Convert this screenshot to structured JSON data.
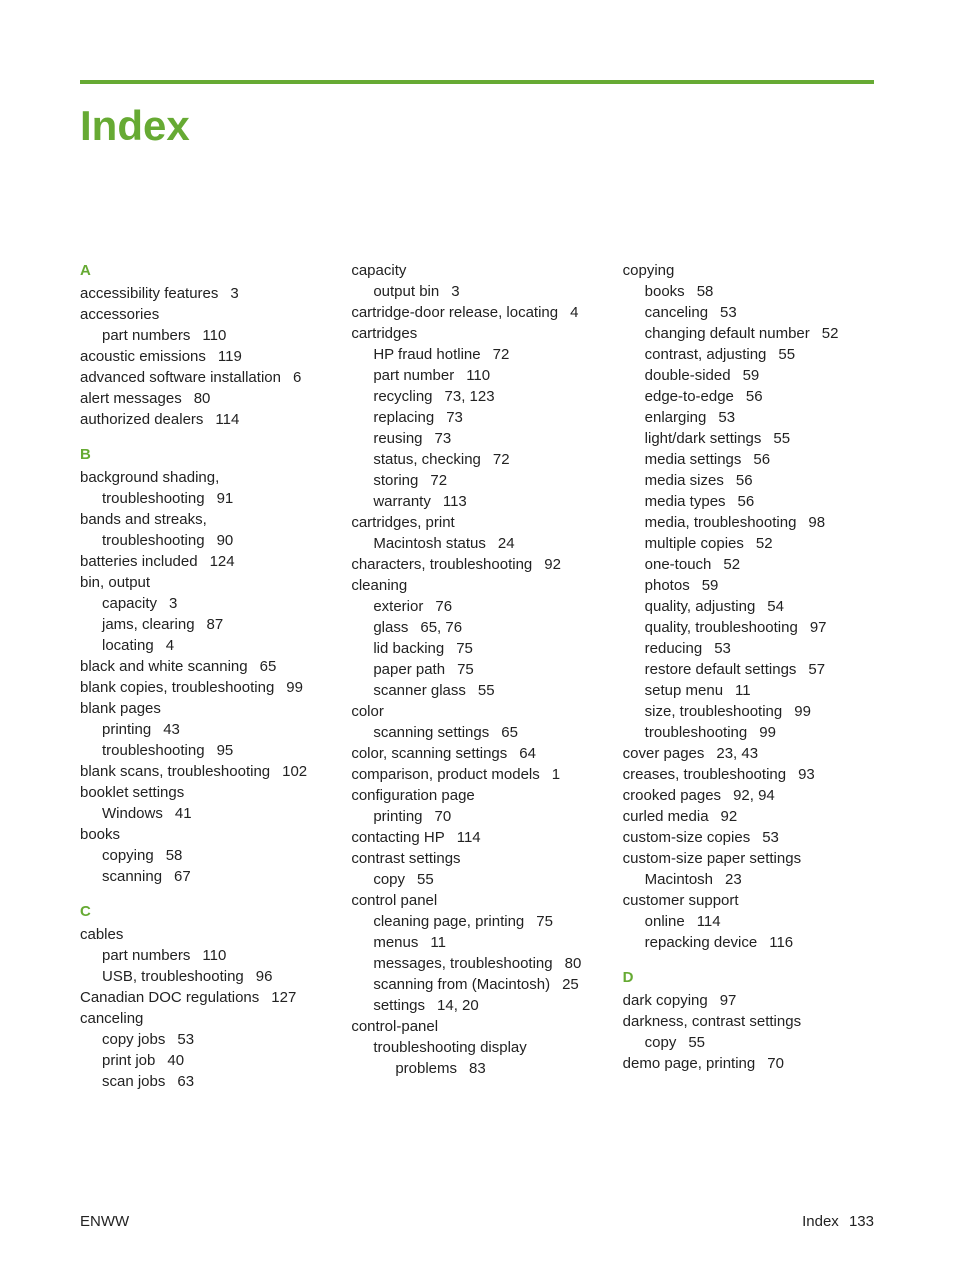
{
  "accent_color": "#66aa33",
  "text_color": "#222222",
  "background_color": "#ffffff",
  "title": "Index",
  "footer_left": "ENWW",
  "footer_right_label": "Index",
  "footer_right_page": "133",
  "columns": [
    [
      {
        "kind": "letter",
        "text": "A"
      },
      {
        "kind": "entry",
        "level": 1,
        "text": "accessibility features",
        "pages": "3"
      },
      {
        "kind": "entry",
        "level": 1,
        "text": "accessories"
      },
      {
        "kind": "entry",
        "level": 2,
        "text": "part numbers",
        "pages": "110"
      },
      {
        "kind": "entry",
        "level": 1,
        "text": "acoustic emissions",
        "pages": "119"
      },
      {
        "kind": "entry",
        "level": 1,
        "text": "advanced software installation",
        "pages": "6"
      },
      {
        "kind": "entry",
        "level": 1,
        "text": "alert messages",
        "pages": "80"
      },
      {
        "kind": "entry",
        "level": 1,
        "text": "authorized dealers",
        "pages": "114"
      },
      {
        "kind": "letter",
        "text": "B"
      },
      {
        "kind": "entry",
        "level": 1,
        "text": "background shading,"
      },
      {
        "kind": "entry",
        "level": 2,
        "text": "troubleshooting",
        "pages": "91"
      },
      {
        "kind": "entry",
        "level": 1,
        "text": "bands and streaks,"
      },
      {
        "kind": "entry",
        "level": 2,
        "text": "troubleshooting",
        "pages": "90"
      },
      {
        "kind": "entry",
        "level": 1,
        "text": "batteries included",
        "pages": "124"
      },
      {
        "kind": "entry",
        "level": 1,
        "text": "bin, output"
      },
      {
        "kind": "entry",
        "level": 2,
        "text": "capacity",
        "pages": "3"
      },
      {
        "kind": "entry",
        "level": 2,
        "text": "jams, clearing",
        "pages": "87"
      },
      {
        "kind": "entry",
        "level": 2,
        "text": "locating",
        "pages": "4"
      },
      {
        "kind": "entry",
        "level": 1,
        "text": "black and white scanning",
        "pages": "65"
      },
      {
        "kind": "entry",
        "level": 1,
        "text": "blank copies, troubleshooting",
        "pages": "99"
      },
      {
        "kind": "entry",
        "level": 1,
        "text": "blank pages"
      },
      {
        "kind": "entry",
        "level": 2,
        "text": "printing",
        "pages": "43"
      },
      {
        "kind": "entry",
        "level": 2,
        "text": "troubleshooting",
        "pages": "95"
      },
      {
        "kind": "entry",
        "level": 1,
        "text": "blank scans, troubleshooting",
        "pages": "102"
      },
      {
        "kind": "entry",
        "level": 1,
        "text": "booklet settings"
      },
      {
        "kind": "entry",
        "level": 2,
        "text": "Windows",
        "pages": "41"
      },
      {
        "kind": "entry",
        "level": 1,
        "text": "books"
      },
      {
        "kind": "entry",
        "level": 2,
        "text": "copying",
        "pages": "58"
      },
      {
        "kind": "entry",
        "level": 2,
        "text": "scanning",
        "pages": "67"
      },
      {
        "kind": "letter",
        "text": "C"
      },
      {
        "kind": "entry",
        "level": 1,
        "text": "cables"
      },
      {
        "kind": "entry",
        "level": 2,
        "text": "part numbers",
        "pages": "110"
      },
      {
        "kind": "entry",
        "level": 2,
        "text": "USB, troubleshooting",
        "pages": "96"
      },
      {
        "kind": "entry",
        "level": 1,
        "text": "Canadian DOC regulations",
        "pages": "127"
      },
      {
        "kind": "entry",
        "level": 1,
        "text": "canceling"
      },
      {
        "kind": "entry",
        "level": 2,
        "text": "copy jobs",
        "pages": "53"
      },
      {
        "kind": "entry",
        "level": 2,
        "text": "print job",
        "pages": "40"
      },
      {
        "kind": "entry",
        "level": 2,
        "text": "scan jobs",
        "pages": "63"
      }
    ],
    [
      {
        "kind": "entry",
        "level": 1,
        "text": "capacity"
      },
      {
        "kind": "entry",
        "level": 2,
        "text": "output bin",
        "pages": "3"
      },
      {
        "kind": "entry",
        "level": 1,
        "text": "cartridge-door release, locating",
        "pages": "4"
      },
      {
        "kind": "entry",
        "level": 1,
        "text": "cartridges"
      },
      {
        "kind": "entry",
        "level": 2,
        "text": "HP fraud hotline",
        "pages": "72"
      },
      {
        "kind": "entry",
        "level": 2,
        "text": "part number",
        "pages": "110"
      },
      {
        "kind": "entry",
        "level": 2,
        "text": "recycling",
        "pages": "73,  123"
      },
      {
        "kind": "entry",
        "level": 2,
        "text": "replacing",
        "pages": "73"
      },
      {
        "kind": "entry",
        "level": 2,
        "text": "reusing",
        "pages": "73"
      },
      {
        "kind": "entry",
        "level": 2,
        "text": "status, checking",
        "pages": "72"
      },
      {
        "kind": "entry",
        "level": 2,
        "text": "storing",
        "pages": "72"
      },
      {
        "kind": "entry",
        "level": 2,
        "text": "warranty",
        "pages": "113"
      },
      {
        "kind": "entry",
        "level": 1,
        "text": "cartridges, print"
      },
      {
        "kind": "entry",
        "level": 2,
        "text": "Macintosh status",
        "pages": "24"
      },
      {
        "kind": "entry",
        "level": 1,
        "text": "characters, troubleshooting",
        "pages": "92"
      },
      {
        "kind": "entry",
        "level": 1,
        "text": "cleaning"
      },
      {
        "kind": "entry",
        "level": 2,
        "text": "exterior",
        "pages": "76"
      },
      {
        "kind": "entry",
        "level": 2,
        "text": "glass",
        "pages": "65,  76"
      },
      {
        "kind": "entry",
        "level": 2,
        "text": "lid backing",
        "pages": "75"
      },
      {
        "kind": "entry",
        "level": 2,
        "text": "paper path",
        "pages": "75"
      },
      {
        "kind": "entry",
        "level": 2,
        "text": "scanner glass",
        "pages": "55"
      },
      {
        "kind": "entry",
        "level": 1,
        "text": "color"
      },
      {
        "kind": "entry",
        "level": 2,
        "text": "scanning settings",
        "pages": "65"
      },
      {
        "kind": "entry",
        "level": 1,
        "text": "color, scanning settings",
        "pages": "64"
      },
      {
        "kind": "entry",
        "level": 1,
        "text": "comparison, product models",
        "pages": "1"
      },
      {
        "kind": "entry",
        "level": 1,
        "text": "configuration page"
      },
      {
        "kind": "entry",
        "level": 2,
        "text": "printing",
        "pages": "70"
      },
      {
        "kind": "entry",
        "level": 1,
        "text": "contacting HP",
        "pages": "114"
      },
      {
        "kind": "entry",
        "level": 1,
        "text": "contrast settings"
      },
      {
        "kind": "entry",
        "level": 2,
        "text": "copy",
        "pages": "55"
      },
      {
        "kind": "entry",
        "level": 1,
        "text": "control panel"
      },
      {
        "kind": "entry",
        "level": 2,
        "text": "cleaning page, printing",
        "pages": "75"
      },
      {
        "kind": "entry",
        "level": 2,
        "text": "menus",
        "pages": "11"
      },
      {
        "kind": "entry",
        "level": 2,
        "text": "messages, troubleshooting",
        "pages": "80"
      },
      {
        "kind": "entry",
        "level": 2,
        "text": "scanning from (Macintosh)",
        "pages": "25"
      },
      {
        "kind": "entry",
        "level": 2,
        "text": "settings",
        "pages": "14,  20"
      },
      {
        "kind": "entry",
        "level": 1,
        "text": "control-panel"
      },
      {
        "kind": "entry",
        "level": 2,
        "text": "troubleshooting display"
      },
      {
        "kind": "entry",
        "level": 3,
        "text": "problems",
        "pages": "83"
      }
    ],
    [
      {
        "kind": "entry",
        "level": 1,
        "text": "copying"
      },
      {
        "kind": "entry",
        "level": 2,
        "text": "books",
        "pages": "58"
      },
      {
        "kind": "entry",
        "level": 2,
        "text": "canceling",
        "pages": "53"
      },
      {
        "kind": "entry",
        "level": 2,
        "text": "changing default number",
        "pages": "52"
      },
      {
        "kind": "entry",
        "level": 2,
        "text": "contrast, adjusting",
        "pages": "55"
      },
      {
        "kind": "entry",
        "level": 2,
        "text": "double-sided",
        "pages": "59"
      },
      {
        "kind": "entry",
        "level": 2,
        "text": "edge-to-edge",
        "pages": "56"
      },
      {
        "kind": "entry",
        "level": 2,
        "text": "enlarging",
        "pages": "53"
      },
      {
        "kind": "entry",
        "level": 2,
        "text": "light/dark settings",
        "pages": "55"
      },
      {
        "kind": "entry",
        "level": 2,
        "text": "media settings",
        "pages": "56"
      },
      {
        "kind": "entry",
        "level": 2,
        "text": "media sizes",
        "pages": "56"
      },
      {
        "kind": "entry",
        "level": 2,
        "text": "media types",
        "pages": "56"
      },
      {
        "kind": "entry",
        "level": 2,
        "text": "media, troubleshooting",
        "pages": "98"
      },
      {
        "kind": "entry",
        "level": 2,
        "text": "multiple copies",
        "pages": "52"
      },
      {
        "kind": "entry",
        "level": 2,
        "text": "one-touch",
        "pages": "52"
      },
      {
        "kind": "entry",
        "level": 2,
        "text": "photos",
        "pages": "59"
      },
      {
        "kind": "entry",
        "level": 2,
        "text": "quality, adjusting",
        "pages": "54"
      },
      {
        "kind": "entry",
        "level": 2,
        "text": "quality, troubleshooting",
        "pages": "97"
      },
      {
        "kind": "entry",
        "level": 2,
        "text": "reducing",
        "pages": "53"
      },
      {
        "kind": "entry",
        "level": 2,
        "text": "restore default settings",
        "pages": "57"
      },
      {
        "kind": "entry",
        "level": 2,
        "text": "setup menu",
        "pages": "11"
      },
      {
        "kind": "entry",
        "level": 2,
        "text": "size, troubleshooting",
        "pages": "99"
      },
      {
        "kind": "entry",
        "level": 2,
        "text": "troubleshooting",
        "pages": "99"
      },
      {
        "kind": "entry",
        "level": 1,
        "text": "cover pages",
        "pages": "23,  43"
      },
      {
        "kind": "entry",
        "level": 1,
        "text": "creases, troubleshooting",
        "pages": "93"
      },
      {
        "kind": "entry",
        "level": 1,
        "text": "crooked pages",
        "pages": "92,  94"
      },
      {
        "kind": "entry",
        "level": 1,
        "text": "curled media",
        "pages": "92"
      },
      {
        "kind": "entry",
        "level": 1,
        "text": "custom-size copies",
        "pages": "53"
      },
      {
        "kind": "entry",
        "level": 1,
        "text": "custom-size paper settings"
      },
      {
        "kind": "entry",
        "level": 2,
        "text": "Macintosh",
        "pages": "23"
      },
      {
        "kind": "entry",
        "level": 1,
        "text": "customer support"
      },
      {
        "kind": "entry",
        "level": 2,
        "text": "online",
        "pages": "114"
      },
      {
        "kind": "entry",
        "level": 2,
        "text": "repacking device",
        "pages": "116"
      },
      {
        "kind": "letter",
        "text": "D"
      },
      {
        "kind": "entry",
        "level": 1,
        "text": "dark copying",
        "pages": "97"
      },
      {
        "kind": "entry",
        "level": 1,
        "text": "darkness, contrast settings"
      },
      {
        "kind": "entry",
        "level": 2,
        "text": "copy",
        "pages": "55"
      },
      {
        "kind": "entry",
        "level": 1,
        "text": "demo page, printing",
        "pages": "70"
      }
    ]
  ]
}
